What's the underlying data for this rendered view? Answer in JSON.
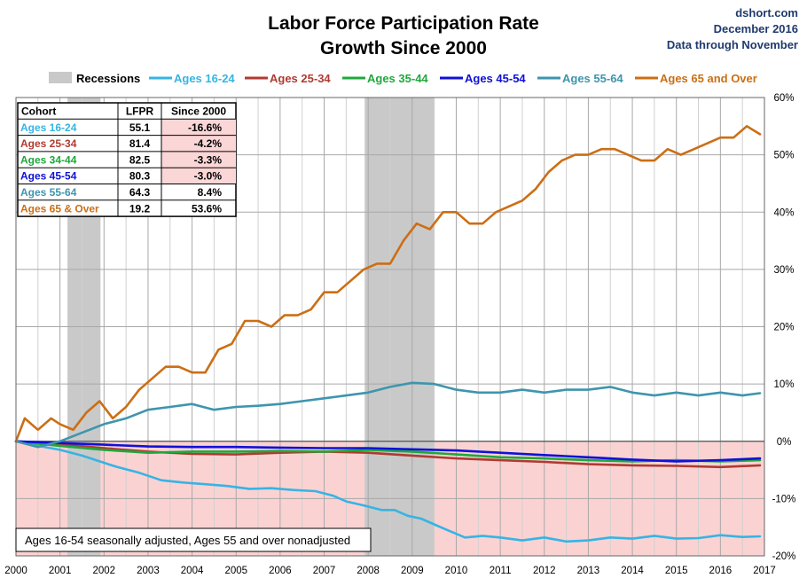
{
  "source": {
    "site": "dshort.com",
    "date": "December 2016",
    "through": "Data through November"
  },
  "chart_data": {
    "type": "line",
    "title": [
      "Labor Force Participation Rate",
      "Growth Since 2000"
    ],
    "xlabel": "",
    "ylabel": "",
    "xlim": [
      2000,
      2017
    ],
    "ylim": [
      -20,
      60
    ],
    "x_ticks": [
      "2000",
      "2001",
      "2002",
      "2003",
      "2004",
      "2005",
      "2006",
      "2007",
      "2008",
      "2009",
      "2010",
      "2011",
      "2012",
      "2013",
      "2014",
      "2015",
      "2016",
      "2017"
    ],
    "y_ticks": [
      "60%",
      "50%",
      "40%",
      "30%",
      "20%",
      "10%",
      "0%",
      "-10%",
      "-20%"
    ],
    "y_tick_values": [
      60,
      50,
      40,
      30,
      20,
      10,
      0,
      -10,
      -20
    ],
    "grid": true,
    "recession_label": "Recessions",
    "recessions": [
      [
        2001.17,
        2001.92
      ],
      [
        2007.92,
        2009.5
      ]
    ],
    "negative_shade_color": "#fbd2d2",
    "recession_color": "#c9c9c9",
    "annotation": "Ages 16-54 seasonally adjusted, Ages 55 and over nonadjusted",
    "series": [
      {
        "name": "Ages 16-24",
        "color": "#36b4e4",
        "x": [
          2000,
          2000.5,
          2001,
          2001.5,
          2001.9,
          2002.3,
          2002.8,
          2003.3,
          2003.8,
          2004.3,
          2004.8,
          2005.3,
          2005.8,
          2006.3,
          2006.8,
          2007.2,
          2007.5,
          2007.9,
          2008.3,
          2008.6,
          2008.9,
          2009.2,
          2009.5,
          2009.8,
          2010.2,
          2010.6,
          2011,
          2011.5,
          2012,
          2012.5,
          2013,
          2013.5,
          2014,
          2014.5,
          2015,
          2015.5,
          2016,
          2016.5,
          2016.9
        ],
        "values": [
          0,
          -0.8,
          -1.5,
          -2.5,
          -3.5,
          -4.5,
          -5.5,
          -6.8,
          -7.2,
          -7.5,
          -7.8,
          -8.3,
          -8.2,
          -8.5,
          -8.7,
          -9.5,
          -10.5,
          -11.2,
          -12,
          -12,
          -13,
          -13.5,
          -14.5,
          -15.5,
          -16.8,
          -16.5,
          -16.8,
          -17.3,
          -16.8,
          -17.5,
          -17.3,
          -16.8,
          -17,
          -16.5,
          -17,
          -16.9,
          -16.4,
          -16.7,
          -16.6
        ]
      },
      {
        "name": "Ages 25-34",
        "color": "#b03a32",
        "x": [
          2000,
          2001,
          2002,
          2003,
          2004,
          2005,
          2006,
          2007,
          2008,
          2009,
          2010,
          2011,
          2012,
          2013,
          2014,
          2015,
          2016,
          2016.9
        ],
        "values": [
          0,
          -0.5,
          -1.2,
          -1.8,
          -2.2,
          -2.3,
          -2.0,
          -1.8,
          -2.0,
          -2.5,
          -3.0,
          -3.3,
          -3.6,
          -4.0,
          -4.2,
          -4.3,
          -4.5,
          -4.2
        ]
      },
      {
        "name": "Ages 35-44",
        "color": "#1ea83c",
        "x": [
          2000,
          2001,
          2002,
          2003,
          2004,
          2005,
          2006,
          2007,
          2008,
          2009,
          2010,
          2011,
          2012,
          2013,
          2014,
          2015,
          2016,
          2016.9
        ],
        "values": [
          0,
          -0.8,
          -1.5,
          -2.0,
          -1.8,
          -1.8,
          -1.7,
          -1.8,
          -1.5,
          -1.8,
          -2.3,
          -2.8,
          -3.0,
          -3.3,
          -3.5,
          -3.3,
          -3.5,
          -3.3
        ]
      },
      {
        "name": "Ages 45-54",
        "color": "#1010d8",
        "x": [
          2000,
          2001,
          2002,
          2003,
          2004,
          2005,
          2006,
          2007,
          2008,
          2009,
          2010,
          2011,
          2012,
          2013,
          2014,
          2015,
          2016,
          2016.9
        ],
        "values": [
          0,
          -0.3,
          -0.6,
          -0.9,
          -1.0,
          -1.0,
          -1.1,
          -1.2,
          -1.2,
          -1.4,
          -1.6,
          -2.0,
          -2.4,
          -2.8,
          -3.2,
          -3.5,
          -3.3,
          -3.0
        ]
      },
      {
        "name": "Ages 55-64",
        "color": "#3e95ad",
        "x": [
          2000,
          2000.5,
          2001,
          2001.5,
          2002,
          2002.5,
          2003,
          2003.5,
          2004,
          2004.5,
          2005,
          2005.5,
          2006,
          2006.5,
          2007,
          2007.5,
          2008,
          2008.5,
          2009,
          2009.5,
          2010,
          2010.5,
          2011,
          2011.5,
          2012,
          2012.5,
          2013,
          2013.5,
          2014,
          2014.5,
          2015,
          2015.5,
          2016,
          2016.5,
          2016.9
        ],
        "values": [
          0,
          -1,
          0,
          1.5,
          3,
          4,
          5.5,
          6,
          6.5,
          5.5,
          6,
          6.2,
          6.5,
          7,
          7.5,
          8,
          8.5,
          9.5,
          10.2,
          10,
          9,
          8.5,
          8.5,
          9,
          8.5,
          9,
          9,
          9.5,
          8.5,
          8,
          8.5,
          8,
          8.5,
          8,
          8.4
        ]
      },
      {
        "name": "Ages 65 and Over",
        "color": "#cc6e14",
        "x": [
          2000,
          2000.2,
          2000.5,
          2000.8,
          2001,
          2001.3,
          2001.6,
          2001.9,
          2002.2,
          2002.5,
          2002.8,
          2003.1,
          2003.4,
          2003.7,
          2004,
          2004.3,
          2004.6,
          2004.9,
          2005.2,
          2005.5,
          2005.8,
          2006.1,
          2006.4,
          2006.7,
          2007,
          2007.3,
          2007.6,
          2007.9,
          2008.2,
          2008.5,
          2008.8,
          2009.1,
          2009.4,
          2009.7,
          2010,
          2010.3,
          2010.6,
          2010.9,
          2011.2,
          2011.5,
          2011.8,
          2012.1,
          2012.4,
          2012.7,
          2013,
          2013.3,
          2013.6,
          2013.9,
          2014.2,
          2014.5,
          2014.8,
          2015.1,
          2015.4,
          2015.7,
          2016,
          2016.3,
          2016.6,
          2016.9
        ],
        "values": [
          0,
          4,
          2,
          4,
          3,
          2,
          5,
          7,
          4,
          6,
          9,
          11,
          13,
          13,
          12,
          12,
          16,
          17,
          21,
          21,
          20,
          22,
          22,
          23,
          26,
          26,
          28,
          30,
          31,
          31,
          35,
          38,
          37,
          40,
          40,
          38,
          38,
          40,
          41,
          42,
          44,
          47,
          49,
          50,
          50,
          51,
          51,
          50,
          49,
          49,
          51,
          50,
          51,
          52,
          53,
          53,
          55,
          53.6
        ]
      }
    ],
    "table": {
      "headers": [
        "Cohort",
        "LFPR",
        "Since 2000"
      ],
      "rows": [
        {
          "cohort": "Ages 16-24",
          "lfpr": "55.1",
          "since": "-16.6%",
          "color": "#36b4e4"
        },
        {
          "cohort": "Ages 25-34",
          "lfpr": "81.4",
          "since": "-4.2%",
          "color": "#b03a32"
        },
        {
          "cohort": "Ages 34-44",
          "lfpr": "82.5",
          "since": "-3.3%",
          "color": "#1ea83c"
        },
        {
          "cohort": "Ages 45-54",
          "lfpr": "80.3",
          "since": "-3.0%",
          "color": "#1010d8"
        },
        {
          "cohort": "Ages 55-64",
          "lfpr": "64.3",
          "since": "8.4%",
          "color": "#3e95ad"
        },
        {
          "cohort": "Ages 65  & Over",
          "lfpr": "19.2",
          "since": "53.6%",
          "color": "#cc6e14"
        }
      ]
    }
  }
}
